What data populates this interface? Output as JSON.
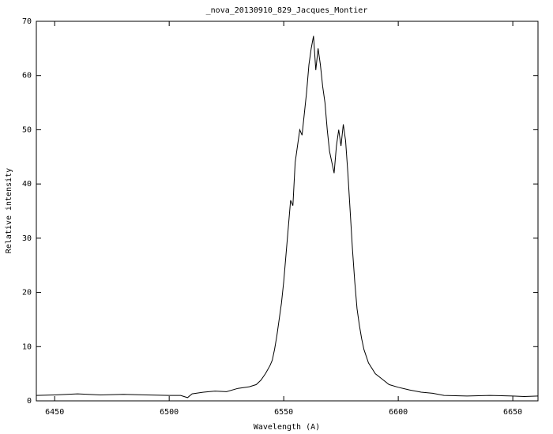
{
  "chart_data": {
    "type": "line",
    "title": "_nova_20130910_829_Jacques_Montier",
    "x_label": "Wavelength (A)",
    "y_label": "Relative intensity",
    "xlim": [
      6442,
      6661
    ],
    "ylim": [
      0,
      70
    ],
    "xticks": [
      6450,
      6500,
      6550,
      6600,
      6650
    ],
    "yticks": [
      0,
      10,
      20,
      30,
      40,
      50,
      60,
      70
    ],
    "grid": false,
    "series": [
      {
        "color": "#000000",
        "x": [
          6442,
          6450,
          6460,
          6470,
          6480,
          6490,
          6500,
          6505,
          6508,
          6510,
          6515,
          6520,
          6525,
          6530,
          6535,
          6538,
          6540,
          6542,
          6544,
          6545,
          6546,
          6547,
          6548,
          6549,
          6550,
          6551,
          6552,
          6553,
          6554,
          6555,
          6556,
          6557,
          6558,
          6559,
          6560,
          6561,
          6562,
          6563,
          6564,
          6565,
          6566,
          6567,
          6568,
          6569,
          6570,
          6571,
          6572,
          6573,
          6574,
          6575,
          6576,
          6577,
          6578,
          6579,
          6580,
          6581,
          6582,
          6583,
          6584,
          6585,
          6587,
          6590,
          6593,
          6596,
          6600,
          6605,
          6610,
          6615,
          6620,
          6630,
          6640,
          6650,
          6655,
          6661
        ],
        "values": [
          1.0,
          1.1,
          1.3,
          1.1,
          1.2,
          1.1,
          1.0,
          1.0,
          0.6,
          1.3,
          1.6,
          1.8,
          1.7,
          2.3,
          2.6,
          3.0,
          3.8,
          5.0,
          6.5,
          7.5,
          9.5,
          12,
          15,
          18,
          22,
          27,
          32,
          37,
          36,
          44,
          47,
          50,
          49,
          53,
          57,
          62,
          65,
          67.3,
          61,
          65,
          62,
          58,
          55,
          50,
          46,
          44,
          42,
          47,
          50,
          47,
          51,
          48,
          42,
          35,
          28,
          22,
          17,
          14,
          11.5,
          9.5,
          7.0,
          5.0,
          4.0,
          3.0,
          2.5,
          2.0,
          1.6,
          1.4,
          1.0,
          0.9,
          1.0,
          0.9,
          0.8,
          0.9
        ]
      }
    ]
  }
}
